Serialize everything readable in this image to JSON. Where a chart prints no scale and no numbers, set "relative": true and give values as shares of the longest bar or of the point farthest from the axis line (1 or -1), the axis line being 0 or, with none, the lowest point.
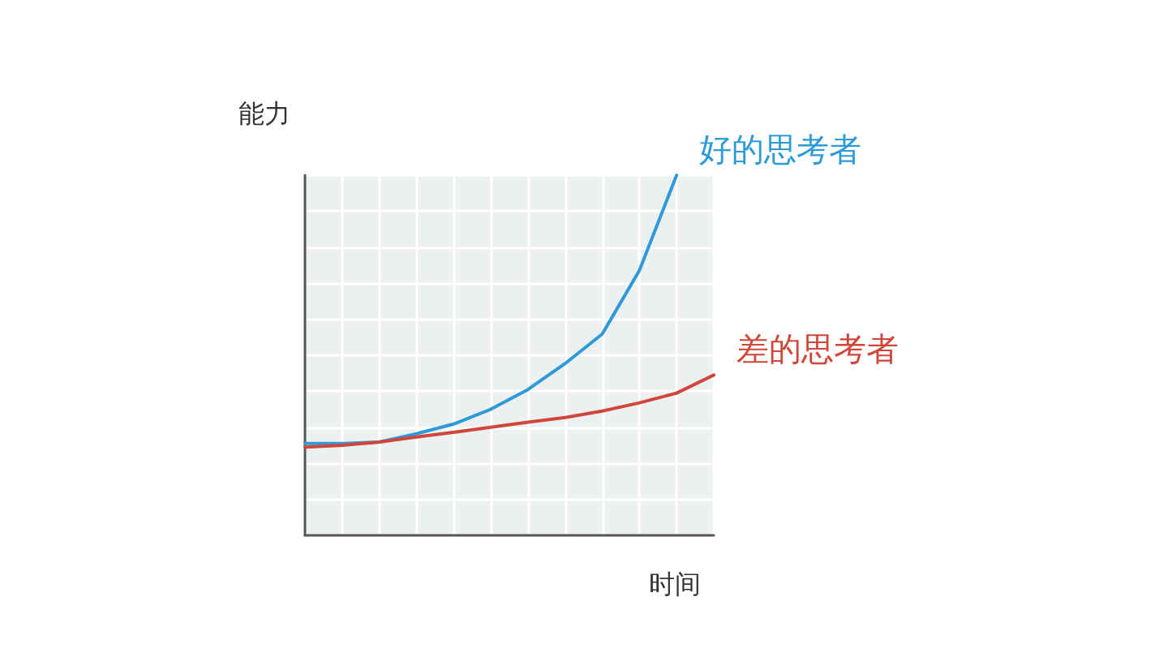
{
  "chart_data": {
    "type": "line",
    "relative": true,
    "xlabel": "时间",
    "ylabel": "能力",
    "grid": true,
    "legend": false,
    "marker": "none",
    "line_style": "solid",
    "categories": [
      null,
      null,
      null,
      null,
      null,
      null,
      null,
      null,
      null,
      null,
      null,
      null
    ],
    "series": [
      {
        "name": "好的思考者",
        "color": "#2e9ad8",
        "values": [
          0.255,
          0.255,
          0.259,
          0.282,
          0.309,
          0.35,
          0.405,
          0.477,
          0.559,
          0.736,
          1.0,
          null
        ]
      },
      {
        "name": "差的思考者",
        "color": "#d0463a",
        "values": [
          0.245,
          0.25,
          0.259,
          0.273,
          0.286,
          0.3,
          0.314,
          0.327,
          0.345,
          0.368,
          0.395,
          0.445
        ]
      }
    ]
  }
}
